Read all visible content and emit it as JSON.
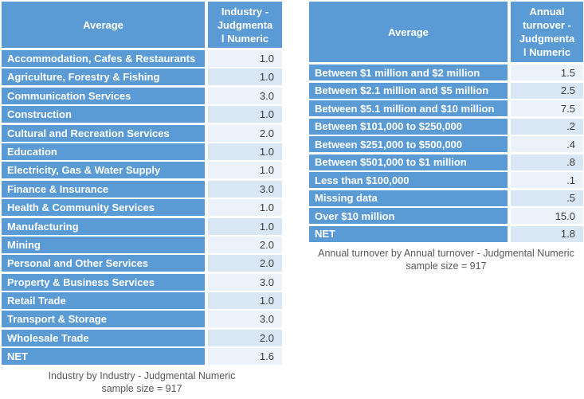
{
  "colors": {
    "table_blue": "#5b9bd5",
    "value_row_light": "#ecf2f9",
    "value_row_shaded": "#d9e7f5",
    "value_text": "#3b3b3b",
    "caption_text": "#595959",
    "background": "#ffffff"
  },
  "chart_data": [
    {
      "type": "table",
      "columns": [
        "Average",
        "Industry - Judgmental Numeric"
      ],
      "header_display": {
        "label": "Average",
        "value": "Industry -\nJudgmenta\nl Numeric"
      },
      "rows": [
        [
          "Accommodation, Cafes & Restaurants",
          "1.0"
        ],
        [
          "Agriculture, Forestry & Fishing",
          "1.0"
        ],
        [
          "Communication Services",
          "3.0"
        ],
        [
          "Construction",
          "1.0"
        ],
        [
          "Cultural and Recreation Services",
          "2.0"
        ],
        [
          "Education",
          "1.0"
        ],
        [
          "Electricity, Gas & Water Supply",
          "1.0"
        ],
        [
          "Finance & Insurance",
          "3.0"
        ],
        [
          "Health & Community Services",
          "1.0"
        ],
        [
          "Manufacturing",
          "1.0"
        ],
        [
          "Mining",
          "2.0"
        ],
        [
          "Personal and Other Services",
          "2.0"
        ],
        [
          "Property & Business Services",
          "3.0"
        ],
        [
          "Retail Trade",
          "1.0"
        ],
        [
          "Transport & Storage",
          "3.0"
        ],
        [
          "Wholesale Trade",
          "2.0"
        ],
        [
          "NET",
          "1.6"
        ]
      ],
      "caption_line1": "Industry by Industry - Judgmental Numeric",
      "caption_line2": "sample size = 917"
    },
    {
      "type": "table",
      "columns": [
        "Average",
        "Annual turnover - Judgmental Numeric"
      ],
      "header_display": {
        "label": "Average",
        "value": "Annual\nturnover -\nJudgmenta\nl Numeric"
      },
      "rows": [
        [
          "Between $1 million and $2 million",
          "1.5"
        ],
        [
          "Between $2.1 million and $5 million",
          "2.5"
        ],
        [
          "Between $5.1 million and $10 million",
          "7.5"
        ],
        [
          "Between $101,000 to $250,000",
          ".2"
        ],
        [
          "Between $251,000 to $500,000",
          ".4"
        ],
        [
          "Between $501,000 to $1 million",
          ".8"
        ],
        [
          "Less than $100,000",
          ".1"
        ],
        [
          "Missing data",
          ".5"
        ],
        [
          "Over $10 million",
          "15.0"
        ],
        [
          "NET",
          "1.8"
        ]
      ],
      "caption_line1": "Annual turnover by Annual turnover - Judgmental Numeric",
      "caption_line2": "sample size = 917"
    }
  ]
}
